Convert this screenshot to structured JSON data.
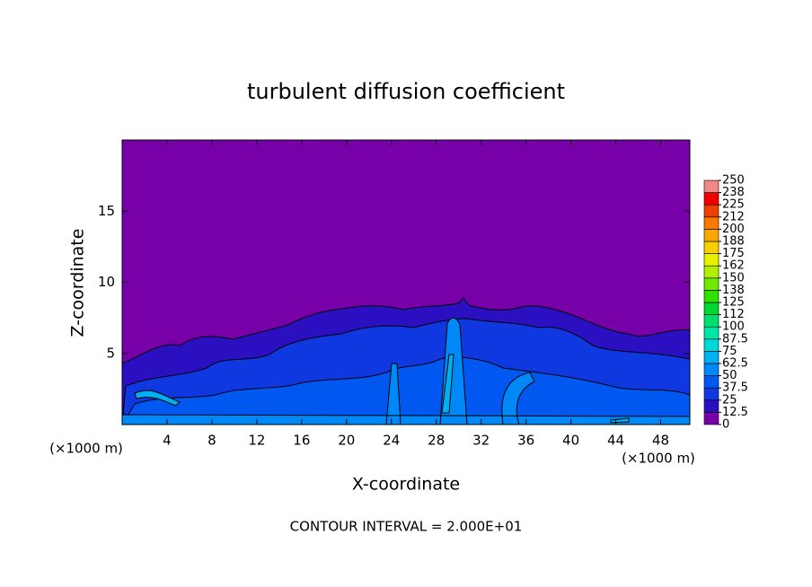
{
  "chart_data": {
    "type": "contour",
    "title": "turbulent diffusion coefficient",
    "x_label": "X-coordinate",
    "y_label": "Z-coordinate",
    "x_unit_label": "(×1000 m)",
    "y_unit_label": "(×1000 m)",
    "xlim": [
      0,
      50.6
    ],
    "xticks": [
      4,
      8,
      12,
      16,
      20,
      24,
      28,
      32,
      36,
      40,
      44,
      48
    ],
    "ylim": [
      0,
      20
    ],
    "yticks": [
      5,
      10,
      15
    ],
    "footer": "CONTOUR INTERVAL = 2.000E+01",
    "colorbar": {
      "ticks": [
        0,
        12.5,
        25,
        37.5,
        50,
        62.5,
        75,
        87.5,
        100,
        112,
        125,
        138,
        150,
        162,
        175,
        188,
        200,
        212,
        225,
        238,
        250
      ],
      "colors": [
        "#7800a8",
        "#2a10c0",
        "#1038e0",
        "#0058f0",
        "#0088f8",
        "#00b0f0",
        "#00d8d8",
        "#00e8a8",
        "#00e070",
        "#00d830",
        "#30e000",
        "#70e800",
        "#b0f000",
        "#e8f000",
        "#f8d000",
        "#f8a800",
        "#f87800",
        "#f04000",
        "#f00000",
        "#f08888"
      ]
    }
  }
}
